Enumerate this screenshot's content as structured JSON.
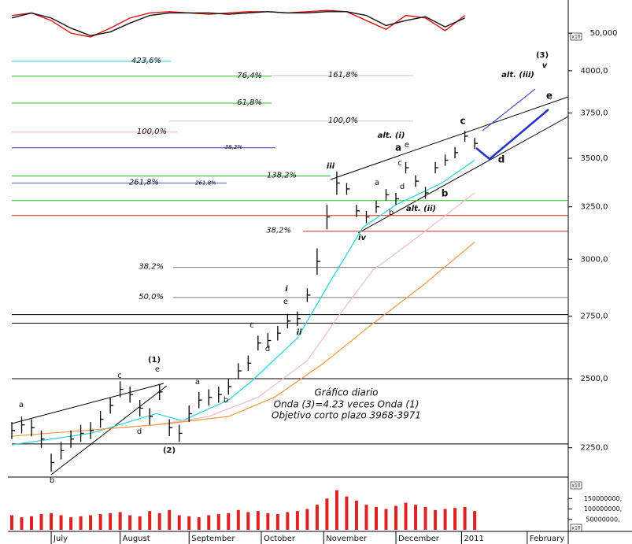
{
  "chart_data": {
    "type": "ohlc",
    "x": [
      0,
      3,
      6,
      9,
      12,
      15,
      18,
      21,
      24,
      27,
      30,
      33,
      36,
      39,
      42,
      45,
      48,
      51,
      54,
      57,
      60,
      63,
      66,
      69,
      72,
      75,
      78,
      81,
      84,
      87,
      90,
      93,
      96,
      99,
      102,
      105,
      108,
      111,
      114,
      117,
      120,
      123,
      126,
      129,
      132,
      135,
      138,
      141
    ],
    "high": [
      2340,
      2360,
      2350,
      2310,
      2230,
      2270,
      2310,
      2330,
      2340,
      2380,
      2430,
      2490,
      2470,
      2420,
      2390,
      2480,
      2350,
      2330,
      2400,
      2450,
      2460,
      2470,
      2500,
      2560,
      2590,
      2670,
      2680,
      2710,
      2760,
      2770,
      2870,
      3050,
      3260,
      3430,
      3370,
      3260,
      3230,
      3280,
      3340,
      3320,
      3480,
      3410,
      3350,
      3480,
      3520,
      3560,
      3650,
      3610
    ],
    "low": [
      2280,
      2300,
      2290,
      2250,
      2170,
      2210,
      2250,
      2270,
      2280,
      2320,
      2370,
      2430,
      2410,
      2360,
      2330,
      2420,
      2290,
      2270,
      2340,
      2390,
      2400,
      2410,
      2440,
      2500,
      2530,
      2610,
      2620,
      2650,
      2700,
      2710,
      2810,
      2930,
      3140,
      3310,
      3310,
      3200,
      3170,
      3220,
      3280,
      3260,
      3420,
      3350,
      3290,
      3420,
      3460,
      3500,
      3590,
      3550
    ],
    "close": [
      2310,
      2330,
      2320,
      2280,
      2200,
      2240,
      2280,
      2300,
      2310,
      2350,
      2400,
      2460,
      2440,
      2390,
      2360,
      2450,
      2320,
      2300,
      2370,
      2420,
      2430,
      2440,
      2470,
      2530,
      2560,
      2640,
      2650,
      2680,
      2730,
      2740,
      2840,
      2990,
      3200,
      3370,
      3340,
      3230,
      3200,
      3250,
      3310,
      3290,
      3450,
      3380,
      3320,
      3450,
      3490,
      3530,
      3620,
      3580
    ],
    "color": "#000000",
    "log_scale": true,
    "xlim": [
      0,
      169.5
    ],
    "ylim": [
      2167,
      4403
    ],
    "xticks": [
      {
        "value": 12,
        "label": "July"
      },
      {
        "value": 33,
        "label": "August"
      },
      {
        "value": 54,
        "label": "September"
      },
      {
        "value": 76,
        "label": "October"
      },
      {
        "value": 95,
        "label": "November"
      },
      {
        "value": 117,
        "label": "December"
      },
      {
        "value": 137,
        "label": "2011"
      },
      {
        "value": 157,
        "label": "February"
      }
    ],
    "yticks": [
      {
        "value": 2250,
        "label": "2250,0"
      },
      {
        "value": 2500,
        "label": "2500,0"
      },
      {
        "value": 2750,
        "label": "2750,0"
      },
      {
        "value": 3000,
        "label": "3000,0"
      },
      {
        "value": 3250,
        "label": "3250,0"
      },
      {
        "value": 3500,
        "label": "3500,0"
      },
      {
        "value": 3750,
        "label": "3750,0"
      },
      {
        "value": 4000,
        "label": "4000,0"
      }
    ],
    "moving_averages": [
      {
        "color": "#22d3e0",
        "x": [
          0,
          24,
          44,
          52,
          66,
          73,
          87,
          97,
          107,
          117,
          131,
          141
        ],
        "values": [
          2260,
          2300,
          2370,
          2345,
          2420,
          2490,
          2660,
          2900,
          3150,
          3260,
          3370,
          3490
        ]
      },
      {
        "color": "#f2b8cc",
        "x": [
          44,
          60,
          75,
          90,
          100,
          110,
          125,
          141
        ],
        "values": [
          2330,
          2360,
          2430,
          2570,
          2760,
          2950,
          3120,
          3320
        ]
      },
      {
        "color": "#f0963c",
        "x": [
          0,
          44,
          66,
          80,
          95,
          110,
          125,
          141
        ],
        "values": [
          2290,
          2330,
          2360,
          2430,
          2560,
          2720,
          2880,
          3080
        ]
      }
    ],
    "levels": [
      {
        "label": "423,6%",
        "value": 4058,
        "color": "#22cccc"
      },
      {
        "label": "76,4%",
        "value": 3967,
        "color": "#22bb22"
      },
      {
        "label": "161,8%",
        "value": 3971,
        "color": "#c8c8c8"
      },
      {
        "label": "61,8%",
        "value": 3807,
        "color": "#22bb22"
      },
      {
        "label": "100,0%",
        "value": 3704,
        "color": "#c8c8c8"
      },
      {
        "label": "100,0%",
        "value": 3642,
        "color": "#e8b0c8"
      },
      {
        "label": "38,2%",
        "value": 3556,
        "color": "#3333cc"
      },
      {
        "label": "138,2%",
        "value": 3406,
        "color": "#22bb22"
      },
      {
        "label": "261,8%",
        "label2": "261,8%",
        "value": 3370,
        "color": "#5566cc"
      },
      {
        "value": 3281,
        "color": "#22bb22"
      },
      {
        "value": 3207,
        "color": "#dd2222"
      },
      {
        "label": "38,2%",
        "value": 3131,
        "color": "#dd2222"
      },
      {
        "label": "38,2%",
        "value": 2963,
        "color": "#777777"
      },
      {
        "label": "50,0%",
        "value": 2830,
        "color": "#777777"
      },
      {
        "value": 2757,
        "color": "#000000"
      },
      {
        "value": 2721,
        "color": "#000000"
      },
      {
        "value": 2500,
        "color": "#000000"
      },
      {
        "value": 2263,
        "color": "#000000"
      }
    ],
    "annotations": [
      "(3)",
      "v",
      "alt. (iii)",
      "e",
      "alt. (i)",
      "c",
      "a",
      "e",
      "c",
      "d",
      "iii",
      "a",
      "b",
      "alt. (ii)",
      "b",
      "d",
      "iv",
      "i",
      "e",
      "c",
      "ii",
      "d",
      "(1)",
      "e",
      "c",
      "a",
      "b",
      "a",
      "d",
      "(2)",
      "b",
      "Gráfico diario",
      "Onda (3)=4.23 veces Onda (1)",
      "Objetivo corto plazo 3968-3971"
    ],
    "oscillator": {
      "ylim": [
        46,
        60
      ],
      "yticks": [
        {
          "value": 50,
          "label": "50,000"
        }
      ],
      "multiplier": "x10",
      "series": [
        {
          "color": "#dd1111",
          "x": [
            0,
            6,
            12,
            18,
            24,
            30,
            36,
            42,
            48,
            54,
            60,
            66,
            72,
            78,
            84,
            90,
            96,
            102,
            108,
            114,
            120,
            126,
            132,
            138
          ],
          "values": [
            57,
            58,
            55,
            50,
            48.5,
            52,
            56,
            58,
            58.5,
            58,
            57.5,
            58,
            58.5,
            58.5,
            58,
            58.5,
            59,
            58.5,
            55,
            51.5,
            57,
            56,
            51,
            57
          ]
        },
        {
          "color": "#111111",
          "x": [
            0,
            6,
            12,
            18,
            24,
            30,
            36,
            42,
            48,
            54,
            60,
            66,
            72,
            78,
            84,
            90,
            96,
            102,
            108,
            114,
            120,
            126,
            132,
            138
          ],
          "values": [
            56,
            58,
            56,
            52,
            49,
            50.5,
            54,
            57,
            58,
            58,
            58,
            57.5,
            58,
            58.5,
            58,
            58,
            58.5,
            58.5,
            57,
            53,
            55,
            56.5,
            52.5,
            56
          ]
        }
      ]
    },
    "volume": {
      "color": "#dd2222",
      "values": [
        70000000,
        60000000,
        65000000,
        75000000,
        80000000,
        70000000,
        60000000,
        65000000,
        70000000,
        75000000,
        80000000,
        85000000,
        70000000,
        65000000,
        90000000,
        80000000,
        95000000,
        70000000,
        65000000,
        60000000,
        70000000,
        75000000,
        80000000,
        95000000,
        85000000,
        90000000,
        80000000,
        75000000,
        85000000,
        90000000,
        100000000,
        120000000,
        150000000,
        190000000,
        160000000,
        140000000,
        120000000,
        110000000,
        100000000,
        115000000,
        130000000,
        120000000,
        110000000,
        95000000,
        100000000,
        105000000,
        110000000,
        90000000
      ],
      "ylim": [
        0,
        200000000
      ],
      "yticks": [
        {
          "value": 50000000,
          "label": "50000000,"
        },
        {
          "value": 100000000,
          "label": "100000000,"
        },
        {
          "value": 150000000,
          "label": "150000000,"
        }
      ],
      "multiplier_labels": [
        "x10",
        "x10"
      ]
    }
  }
}
